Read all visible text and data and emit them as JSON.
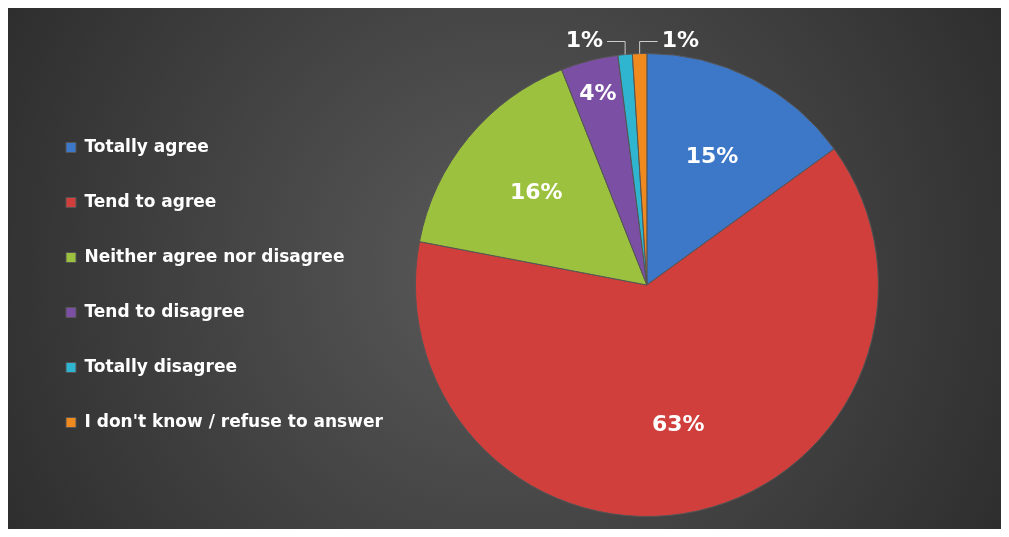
{
  "chart_data": {
    "type": "pie",
    "categories": [
      "Totally agree",
      "Tend to agree",
      "Neither agree nor disagree",
      "Tend to disagree",
      "Totally disagree",
      "I don't know / refuse to answer"
    ],
    "values": [
      15,
      63,
      16,
      4,
      1,
      1
    ],
    "colors": [
      "#3d78c8",
      "#d03f3c",
      "#9cc13e",
      "#7b4fa3",
      "#2fb5cf",
      "#f08a1e"
    ],
    "value_labels": [
      "15%",
      "63%",
      "16%",
      "4%",
      "1%",
      "1%"
    ],
    "legend": "left"
  }
}
